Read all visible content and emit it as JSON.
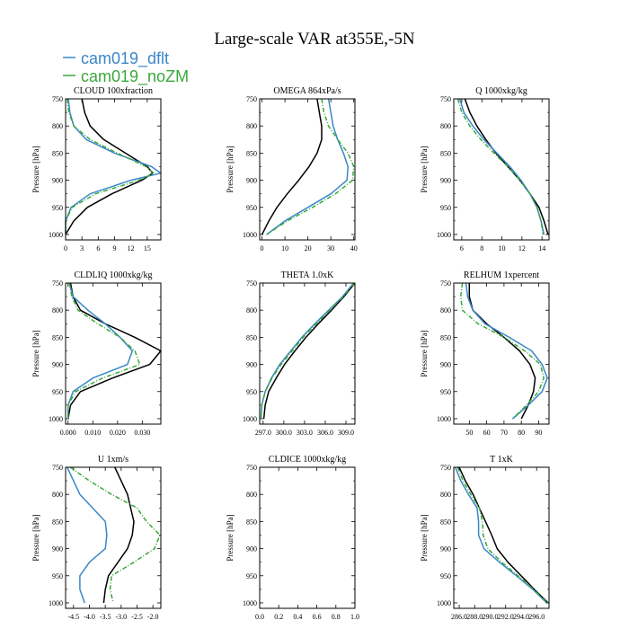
{
  "figure": {
    "title": "Large-scale VAR at355E,-5N",
    "legend": [
      {
        "name": "cam019_dflt",
        "color": "#3a87c8"
      },
      {
        "name": "cam019_noZM",
        "color": "#3aa83a"
      }
    ]
  },
  "chart_data": [
    {
      "type": "line",
      "title": "CLOUD  100xfraction",
      "ylabel": "Pressure [hPa]",
      "xlim": [
        0,
        17.5
      ],
      "ylim": [
        750,
        1010
      ],
      "y_inverted": true,
      "xticks": [
        "0",
        "3",
        "6",
        "9",
        "12",
        "15"
      ],
      "xtick_values": [
        0,
        3,
        6,
        9,
        12,
        15
      ],
      "yticks": [
        "750",
        "800",
        "850",
        "900",
        "950",
        "1000"
      ],
      "y": [
        750,
        775,
        800,
        825,
        850,
        875,
        887,
        900,
        925,
        950,
        975,
        1000
      ],
      "series": [
        {
          "name": "",
          "color": "#000000",
          "dash": false,
          "values": [
            3,
            3.5,
            4.5,
            7,
            11,
            15,
            16,
            14,
            8.5,
            4,
            1.5,
            0
          ]
        },
        {
          "name": "cam019_dflt",
          "color": "#3a87c8",
          "dash": false,
          "values": [
            0.5,
            0.8,
            1.5,
            3.8,
            9,
            15.8,
            17.5,
            12,
            4.5,
            1,
            0,
            0
          ]
        },
        {
          "name": "cam019_noZM",
          "color": "#3aa83a",
          "dash": true,
          "values": [
            0.3,
            0.6,
            1.5,
            4.5,
            9.5,
            14.8,
            16.2,
            13.5,
            5.5,
            1.2,
            0,
            0
          ]
        }
      ]
    },
    {
      "type": "line",
      "title": "OMEGA  864xPa/s",
      "ylabel": "Pressure [hPa]",
      "xlim": [
        -1,
        40.5
      ],
      "ylim": [
        750,
        1010
      ],
      "y_inverted": true,
      "xticks": [
        "0",
        "10",
        "20",
        "30",
        "40"
      ],
      "xtick_values": [
        0,
        10,
        20,
        30,
        40
      ],
      "yticks": [
        "750",
        "800",
        "850",
        "900",
        "950",
        "1000"
      ],
      "y": [
        750,
        775,
        800,
        825,
        850,
        875,
        900,
        925,
        950,
        975,
        1000
      ],
      "series": [
        {
          "name": "",
          "color": "#000000",
          "dash": false,
          "values": [
            24,
            25,
            26,
            26,
            24,
            20.5,
            16,
            11,
            6.5,
            3,
            0
          ]
        },
        {
          "name": "cam019_dflt",
          "color": "#3a87c8",
          "dash": false,
          "values": [
            29,
            30,
            31,
            33,
            35.5,
            37.5,
            37,
            30,
            20,
            10,
            2
          ]
        },
        {
          "name": "cam019_noZM",
          "color": "#3aa83a",
          "dash": true,
          "values": [
            26,
            27,
            29,
            33,
            37.5,
            40,
            39.5,
            32,
            22,
            11,
            2
          ]
        }
      ]
    },
    {
      "type": "line",
      "title": "Q  1000xkg/kg",
      "ylabel": "Pressure [hPa]",
      "xlim": [
        5.2,
        14.7
      ],
      "ylim": [
        750,
        1010
      ],
      "y_inverted": true,
      "xticks": [
        "6",
        "8",
        "10",
        "12",
        "14"
      ],
      "xtick_values": [
        6,
        8,
        10,
        12,
        14
      ],
      "yticks": [
        "750",
        "800",
        "850",
        "900",
        "950",
        "1000"
      ],
      "y": [
        750,
        775,
        800,
        825,
        850,
        875,
        900,
        925,
        950,
        975,
        1000
      ],
      "series": [
        {
          "name": "",
          "color": "#000000",
          "dash": false,
          "values": [
            6.3,
            6.8,
            7.5,
            8.4,
            9.4,
            10.6,
            11.8,
            12.8,
            13.7,
            14.2,
            14.6
          ]
        },
        {
          "name": "cam019_dflt",
          "color": "#3a87c8",
          "dash": false,
          "values": [
            5.8,
            6.2,
            7.1,
            8.2,
            9.5,
            10.8,
            11.9,
            12.8,
            13.5,
            13.9,
            14.2
          ]
        },
        {
          "name": "cam019_noZM",
          "color": "#3aa83a",
          "dash": true,
          "values": [
            5.6,
            6,
            6.8,
            7.9,
            9.2,
            10.6,
            11.8,
            12.8,
            13.5,
            13.9,
            14.1
          ]
        }
      ]
    },
    {
      "type": "line",
      "title": "CLDLIQ  1000xkg/kg",
      "ylabel": "Pressure [hPa]",
      "xlim": [
        -0.001,
        0.0375
      ],
      "ylim": [
        750,
        1010
      ],
      "y_inverted": true,
      "xticks": [
        "0.000",
        "0.010",
        "0.020",
        "0.030"
      ],
      "xtick_values": [
        0,
        0.01,
        0.02,
        0.03
      ],
      "yticks": [
        "750",
        "800",
        "850",
        "900",
        "950",
        "1000"
      ],
      "y": [
        750,
        775,
        800,
        825,
        850,
        875,
        900,
        925,
        950,
        975,
        1000
      ],
      "series": [
        {
          "name": "",
          "color": "#000000",
          "dash": false,
          "values": [
            0.001,
            0.002,
            0.005,
            0.015,
            0.027,
            0.0375,
            0.033,
            0.018,
            0.005,
            0.001,
            0
          ]
        },
        {
          "name": "cam019_dflt",
          "color": "#3a87c8",
          "dash": false,
          "values": [
            0.0005,
            0.002,
            0.008,
            0.015,
            0.021,
            0.026,
            0.024,
            0.01,
            0.002,
            0,
            0
          ]
        },
        {
          "name": "cam019_noZM",
          "color": "#3aa83a",
          "dash": true,
          "values": [
            0.0005,
            0.0015,
            0.004,
            0.012,
            0.021,
            0.027,
            0.029,
            0.014,
            0.003,
            0,
            0
          ]
        }
      ]
    },
    {
      "type": "line",
      "title": "THETA  1.0xK",
      "ylabel": "",
      "xlim": [
        296.5,
        310.3
      ],
      "ylim": [
        750,
        1010
      ],
      "y_inverted": true,
      "xticks": [
        "297.0",
        "300.0",
        "303.0",
        "306.0",
        "309.0"
      ],
      "xtick_values": [
        297,
        300,
        303,
        306,
        309
      ],
      "yticks": [
        "750",
        "800",
        "850",
        "900",
        "950",
        "1000"
      ],
      "y": [
        750,
        775,
        800,
        825,
        850,
        875,
        900,
        925,
        950,
        975,
        1000
      ],
      "series": [
        {
          "name": "",
          "color": "#000000",
          "dash": false,
          "values": [
            310.3,
            308.7,
            306.9,
            305,
            303.2,
            301.6,
            300.1,
            298.9,
            297.8,
            297.3,
            297.1
          ]
        },
        {
          "name": "cam019_dflt",
          "color": "#3a87c8",
          "dash": false,
          "values": [
            310.1,
            308.5,
            306.5,
            304.5,
            302.6,
            301,
            299.4,
            298.2,
            297.3,
            296.8,
            296.7
          ]
        },
        {
          "name": "cam019_noZM",
          "color": "#3aa83a",
          "dash": true,
          "values": [
            310.2,
            308.6,
            306.7,
            304.7,
            302.8,
            301.2,
            299.6,
            298.3,
            297.3,
            296.8,
            296.7
          ]
        }
      ]
    },
    {
      "type": "line",
      "title": "RELHUM  1xpercent",
      "ylabel": "Pressure [hPa]",
      "xlim": [
        41,
        96
      ],
      "ylim": [
        750,
        1010
      ],
      "y_inverted": true,
      "xticks": [
        "50",
        "60",
        "70",
        "80",
        "90"
      ],
      "xtick_values": [
        50,
        60,
        70,
        80,
        90
      ],
      "yticks": [
        "750",
        "800",
        "850",
        "900",
        "950",
        "1000"
      ],
      "y": [
        750,
        775,
        800,
        825,
        850,
        875,
        900,
        925,
        950,
        975,
        1000
      ],
      "series": [
        {
          "name": "",
          "color": "#000000",
          "dash": false,
          "values": [
            50,
            50,
            52,
            60,
            70,
            79,
            85,
            88,
            87,
            84,
            80
          ]
        },
        {
          "name": "cam019_dflt",
          "color": "#3a87c8",
          "dash": false,
          "values": [
            48,
            49,
            52,
            59,
            73,
            86,
            92,
            95,
            92,
            84,
            75
          ]
        },
        {
          "name": "cam019_noZM",
          "color": "#3aa83a",
          "dash": true,
          "values": [
            46,
            45,
            46,
            55,
            70,
            82,
            91,
            93,
            90,
            83,
            75
          ]
        }
      ]
    },
    {
      "type": "line",
      "title": "U  1xm/s",
      "ylabel": "Pressure [hPa]",
      "xlim": [
        -4.75,
        -1.75
      ],
      "ylim": [
        750,
        1010
      ],
      "y_inverted": true,
      "xticks": [
        "-4.5",
        "-4.0",
        "-3.5",
        "-3.0",
        "-2.5",
        "-2.0"
      ],
      "xtick_values": [
        -4.5,
        -4,
        -3.5,
        -3,
        -2.5,
        -2
      ],
      "yticks": [
        "750",
        "800",
        "850",
        "900",
        "950",
        "1000"
      ],
      "y": [
        750,
        775,
        800,
        825,
        850,
        875,
        900,
        925,
        950,
        975,
        1000
      ],
      "series": [
        {
          "name": "",
          "color": "#000000",
          "dash": false,
          "values": [
            -3.2,
            -3,
            -2.8,
            -2.7,
            -2.6,
            -2.65,
            -2.8,
            -3.1,
            -3.4,
            -3.5,
            -3.55
          ]
        },
        {
          "name": "cam019_dflt",
          "color": "#3a87c8",
          "dash": false,
          "values": [
            -4.7,
            -4.5,
            -4.3,
            -3.9,
            -3.5,
            -3.45,
            -3.5,
            -4.0,
            -4.3,
            -4.3,
            -4.15
          ]
        },
        {
          "name": "cam019_noZM",
          "color": "#3aa83a",
          "dash": true,
          "values": [
            -4.6,
            -4.0,
            -3.3,
            -2.5,
            -2.2,
            -1.78,
            -1.95,
            -2.6,
            -3.3,
            -3.35,
            -3.25
          ]
        }
      ]
    },
    {
      "type": "line",
      "title": "CLDICE  1000xkg/kg",
      "ylabel": "Pressure [hPa]",
      "xlim": [
        0,
        1
      ],
      "ylim": [
        750,
        1010
      ],
      "y_inverted": true,
      "xticks": [
        "0.0",
        "0.2",
        "0.4",
        "0.6",
        "0.8",
        "1.0"
      ],
      "xtick_values": [
        0,
        0.2,
        0.4,
        0.6,
        0.8,
        1.0
      ],
      "yticks": [
        "750",
        "800",
        "850",
        "900",
        "950",
        "1000"
      ],
      "y": [],
      "series": []
    },
    {
      "type": "line",
      "title": "T  1xK",
      "ylabel": "Pressure [hPa]",
      "xlim": [
        285.3,
        297.6
      ],
      "ylim": [
        750,
        1010
      ],
      "y_inverted": true,
      "xticks": [
        "286.0",
        "288.0",
        "290.0",
        "292.0",
        "294.0",
        "296.0"
      ],
      "xtick_values": [
        286,
        288,
        290,
        292,
        294,
        296
      ],
      "yticks": [
        "750",
        "800",
        "850",
        "900",
        "950",
        "1000"
      ],
      "y": [
        750,
        775,
        800,
        825,
        850,
        875,
        900,
        925,
        950,
        975,
        1000
      ],
      "series": [
        {
          "name": "",
          "color": "#000000",
          "dash": false,
          "values": [
            286,
            286.8,
            287.8,
            288.6,
            289.4,
            290.2,
            290.9,
            292.3,
            294.0,
            295.7,
            297.5
          ]
        },
        {
          "name": "cam019_dflt",
          "color": "#3a87c8",
          "dash": false,
          "values": [
            285.5,
            286.2,
            287.2,
            288.3,
            288.5,
            288.5,
            289.2,
            291.2,
            293.4,
            295.5,
            297.3
          ]
        },
        {
          "name": "cam019_noZM",
          "color": "#3aa83a",
          "dash": true,
          "values": [
            285.8,
            286.5,
            287.5,
            288.6,
            289.0,
            289.1,
            289.7,
            291.5,
            293.6,
            295.6,
            297.4
          ]
        }
      ]
    }
  ]
}
